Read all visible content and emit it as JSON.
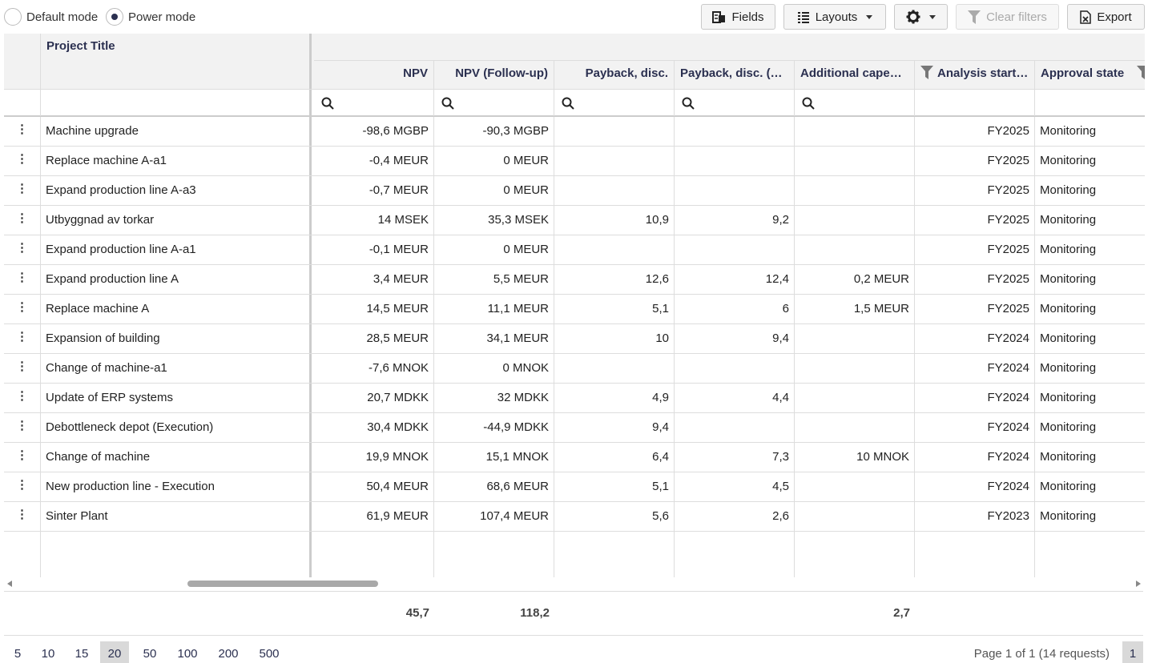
{
  "toolbar": {
    "default_mode_label": "Default mode",
    "power_mode_label": "Power mode",
    "selected_mode": "Power mode",
    "fields_label": "Fields",
    "layouts_label": "Layouts",
    "clear_filters_label": "Clear filters",
    "export_label": "Export"
  },
  "columns": {
    "project_title": "Project Title",
    "npv": "NPV",
    "npv_followup": "NPV (Follow-up)",
    "payback_disc": "Payback, disc.",
    "payback_disc_2": "Payback, disc. (…",
    "additional_capex": "Additional capex…",
    "analysis_start": "Analysis start…",
    "approval_state": "Approval state"
  },
  "rows": [
    {
      "title": "Machine upgrade",
      "npv": "-98,6 MGBP",
      "npv_fu": "-90,3 MGBP",
      "pb": "",
      "pb2": "",
      "capex": "",
      "start": "FY2025",
      "state": "Monitoring"
    },
    {
      "title": "Replace machine A-a1",
      "npv": "-0,4 MEUR",
      "npv_fu": "0 MEUR",
      "pb": "",
      "pb2": "",
      "capex": "",
      "start": "FY2025",
      "state": "Monitoring"
    },
    {
      "title": "Expand production line A-a3",
      "npv": "-0,7 MEUR",
      "npv_fu": "0 MEUR",
      "pb": "",
      "pb2": "",
      "capex": "",
      "start": "FY2025",
      "state": "Monitoring"
    },
    {
      "title": "Utbyggnad av torkar",
      "npv": "14 MSEK",
      "npv_fu": "35,3 MSEK",
      "pb": "10,9",
      "pb2": "9,2",
      "capex": "",
      "start": "FY2025",
      "state": "Monitoring"
    },
    {
      "title": "Expand production line A-a1",
      "npv": "-0,1 MEUR",
      "npv_fu": "0 MEUR",
      "pb": "",
      "pb2": "",
      "capex": "",
      "start": "FY2025",
      "state": "Monitoring"
    },
    {
      "title": "Expand production line A",
      "npv": "3,4 MEUR",
      "npv_fu": "5,5 MEUR",
      "pb": "12,6",
      "pb2": "12,4",
      "capex": "0,2 MEUR",
      "start": "FY2025",
      "state": "Monitoring"
    },
    {
      "title": "Replace machine A",
      "npv": "14,5 MEUR",
      "npv_fu": "11,1 MEUR",
      "pb": "5,1",
      "pb2": "6",
      "capex": "1,5 MEUR",
      "start": "FY2025",
      "state": "Monitoring"
    },
    {
      "title": "Expansion of building",
      "npv": "28,5 MEUR",
      "npv_fu": "34,1 MEUR",
      "pb": "10",
      "pb2": "9,4",
      "capex": "",
      "start": "FY2024",
      "state": "Monitoring"
    },
    {
      "title": "Change of machine-a1",
      "npv": "-7,6 MNOK",
      "npv_fu": "0 MNOK",
      "pb": "",
      "pb2": "",
      "capex": "",
      "start": "FY2024",
      "state": "Monitoring"
    },
    {
      "title": "Update of ERP systems",
      "npv": "20,7 MDKK",
      "npv_fu": "32 MDKK",
      "pb": "4,9",
      "pb2": "4,4",
      "capex": "",
      "start": "FY2024",
      "state": "Monitoring"
    },
    {
      "title": "Debottleneck depot (Execution)",
      "npv": "30,4 MDKK",
      "npv_fu": "-44,9 MDKK",
      "pb": "9,4",
      "pb2": "",
      "capex": "",
      "start": "FY2024",
      "state": "Monitoring"
    },
    {
      "title": "Change of machine",
      "npv": "19,9 MNOK",
      "npv_fu": "15,1 MNOK",
      "pb": "6,4",
      "pb2": "7,3",
      "capex": "10 MNOK",
      "start": "FY2024",
      "state": "Monitoring"
    },
    {
      "title": "New production line - Execution",
      "npv": "50,4 MEUR",
      "npv_fu": "68,6 MEUR",
      "pb": "5,1",
      "pb2": "4,5",
      "capex": "",
      "start": "FY2024",
      "state": "Monitoring"
    },
    {
      "title": "Sinter Plant",
      "npv": "61,9 MEUR",
      "npv_fu": "107,4 MEUR",
      "pb": "5,6",
      "pb2": "2,6",
      "capex": "",
      "start": "FY2023",
      "state": "Monitoring"
    }
  ],
  "totals": {
    "npv": "45,7",
    "npv_fu": "118,2",
    "capex": "2,7"
  },
  "pager": {
    "sizes": [
      "5",
      "10",
      "15",
      "20",
      "50",
      "100",
      "200",
      "500"
    ],
    "active_size": "20",
    "info": "Page 1 of 1 (14 requests)",
    "current_page": "1"
  }
}
